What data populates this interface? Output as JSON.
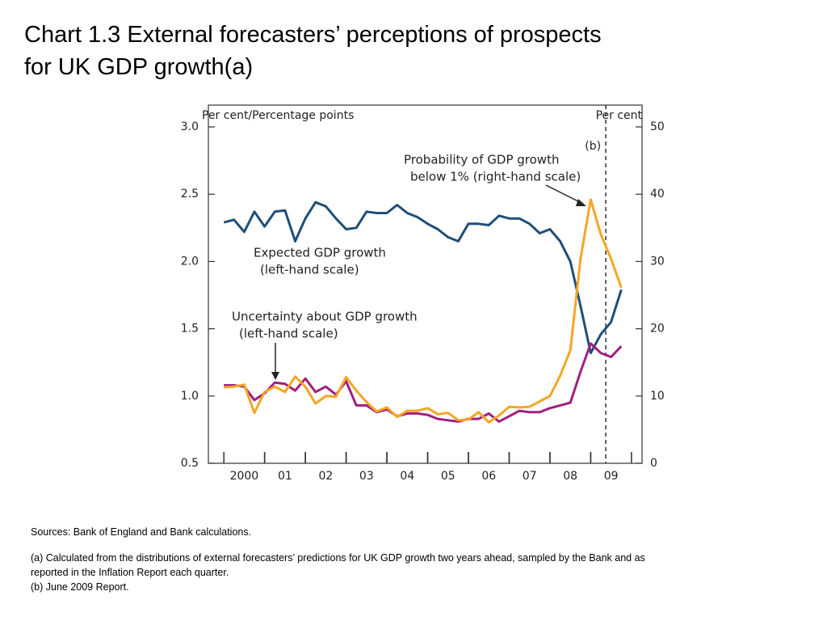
{
  "title": "Chart 1.3  External forecasters’ perceptions of prospects",
  "title_line2": "for UK GDP growth(a)",
  "chart_data": {
    "type": "line",
    "y_label": "Per cent/Percentage points",
    "y2_label": "Per cent",
    "x": [
      2000.0,
      2000.25,
      2000.5,
      2000.75,
      2001.0,
      2001.25,
      2001.5,
      2001.75,
      2002.0,
      2002.25,
      2002.5,
      2002.75,
      2003.0,
      2003.25,
      2003.5,
      2003.75,
      2004.0,
      2004.25,
      2004.5,
      2004.75,
      2005.0,
      2005.25,
      2005.5,
      2005.75,
      2006.0,
      2006.25,
      2006.5,
      2006.75,
      2007.0,
      2007.25,
      2007.5,
      2007.75,
      2008.0,
      2008.25,
      2008.5,
      2008.75,
      2009.0,
      2009.25,
      2009.5,
      2009.75
    ],
    "xlim": [
      1999.62,
      2010.26
    ],
    "xticks": [
      {
        "value": 2000.5,
        "label": "2000"
      },
      {
        "value": 2001.5,
        "label": "01"
      },
      {
        "value": 2002.5,
        "label": "02"
      },
      {
        "value": 2003.5,
        "label": "03"
      },
      {
        "value": 2004.5,
        "label": "04"
      },
      {
        "value": 2005.5,
        "label": "05"
      },
      {
        "value": 2006.5,
        "label": "06"
      },
      {
        "value": 2007.5,
        "label": "07"
      },
      {
        "value": 2008.5,
        "label": "08"
      },
      {
        "value": 2009.5,
        "label": "09"
      }
    ],
    "ylim": [
      0.5,
      3.0
    ],
    "yticks": [
      0.5,
      {
        "value": 1.0,
        "label": "1.0"
      },
      1.5,
      {
        "value": 2.0,
        "label": "2.0"
      },
      2.5,
      {
        "value": 3.0,
        "label": "3.0"
      }
    ],
    "y2lim": [
      0,
      50
    ],
    "y2ticks": [
      0,
      10,
      20,
      30,
      40,
      50
    ],
    "grid": false,
    "reference_line": {
      "x": 2009.37,
      "label": "(b)"
    },
    "series": [
      {
        "name": "Expected GDP growth (left-hand scale)",
        "label_lines": [
          "Expected GDP growth",
          "(left-hand scale)"
        ],
        "color": "#1f4e79",
        "values": [
          2.29,
          2.31,
          2.22,
          2.37,
          2.26,
          2.37,
          2.38,
          2.15,
          2.32,
          2.44,
          2.41,
          2.32,
          2.24,
          2.25,
          2.37,
          2.36,
          2.36,
          2.42,
          2.36,
          2.33,
          2.28,
          2.24,
          2.18,
          2.15,
          2.28,
          2.28,
          2.27,
          2.34,
          2.32,
          2.32,
          2.28,
          2.21,
          2.24,
          2.15,
          2.0,
          1.67,
          1.32,
          1.46,
          1.55,
          1.79
        ]
      },
      {
        "name": "Uncertainty about GDP growth (left-hand scale)",
        "label_lines": [
          "Uncertainty about GDP growth",
          "(left-hand scale)"
        ],
        "color": "#a0207f",
        "values": [
          1.08,
          1.08,
          1.07,
          0.97,
          1.02,
          1.1,
          1.09,
          1.04,
          1.13,
          1.03,
          1.07,
          1.01,
          1.11,
          0.93,
          0.93,
          0.88,
          0.9,
          0.85,
          0.87,
          0.87,
          0.86,
          0.83,
          0.82,
          0.81,
          0.83,
          0.83,
          0.87,
          0.81,
          0.85,
          0.89,
          0.88,
          0.88,
          0.91,
          0.93,
          0.95,
          1.18,
          1.39,
          1.32,
          1.29,
          1.37
        ]
      },
      {
        "name": "Probability of GDP growth below 1% (right-hand scale)",
        "label_lines": [
          "Probability of GDP growth",
          "below 1% (right-hand scale)"
        ],
        "color": "#f5a623",
        "axis": "y2",
        "values": [
          11.3,
          11.4,
          11.7,
          7.5,
          10.6,
          11.4,
          10.6,
          12.9,
          11.4,
          8.9,
          10.0,
          9.9,
          12.8,
          10.8,
          9.1,
          7.7,
          8.3,
          6.9,
          7.8,
          7.8,
          8.2,
          7.3,
          7.5,
          6.4,
          6.5,
          7.6,
          6.1,
          7.1,
          8.4,
          8.3,
          8.4,
          9.2,
          10.0,
          13.0,
          16.8,
          30.4,
          39.2,
          34.0,
          30.4,
          26.1
        ]
      }
    ]
  },
  "notes": [
    "Sources:  Bank of England and Bank calculations.",
    "(a)  Calculated from the distributions of external forecasters’ predictions for UK GDP growth two years ahead, sampled by the Bank and as",
    "reported in the Inflation Report each quarter.",
    "(b)  June 2009 Report."
  ]
}
